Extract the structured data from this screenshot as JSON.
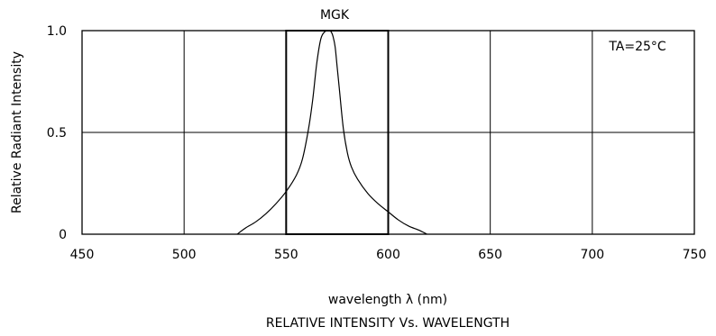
{
  "chart_data": {
    "type": "line",
    "series_label": "MGK",
    "annotation": "TA=25°C",
    "xlabel": "wavelength λ (nm)",
    "ylabel": "Relative Radiant Intensity",
    "caption": "RELATIVE INTENSITY Vs. WAVELENGTH",
    "xlim": [
      450,
      750
    ],
    "ylim": [
      0,
      1.0
    ],
    "x_ticks": [
      450,
      500,
      550,
      600,
      650,
      700,
      750
    ],
    "x_tick_labels": [
      "450",
      "500",
      "550",
      "600",
      "650",
      "700",
      "750"
    ],
    "y_ticks": [
      0,
      0.5,
      1.0
    ],
    "y_tick_labels": [
      "0",
      "0.5",
      "1.0"
    ],
    "grid": true,
    "highlight_band": [
      550,
      600
    ],
    "series": [
      {
        "x": [
          526,
          530,
          535,
          540,
          545,
          550,
          555,
          558,
          561,
          563,
          565,
          567,
          569,
          571,
          572,
          573,
          574,
          575,
          576,
          578,
          580,
          582,
          585,
          590,
          595,
          600,
          605,
          610,
          615,
          619
        ],
        "y": [
          0.0,
          0.03,
          0.06,
          0.1,
          0.15,
          0.21,
          0.29,
          0.37,
          0.52,
          0.66,
          0.84,
          0.96,
          0.995,
          1.0,
          0.995,
          0.97,
          0.92,
          0.82,
          0.72,
          0.52,
          0.4,
          0.33,
          0.27,
          0.2,
          0.15,
          0.11,
          0.07,
          0.04,
          0.02,
          0.0
        ]
      }
    ]
  }
}
